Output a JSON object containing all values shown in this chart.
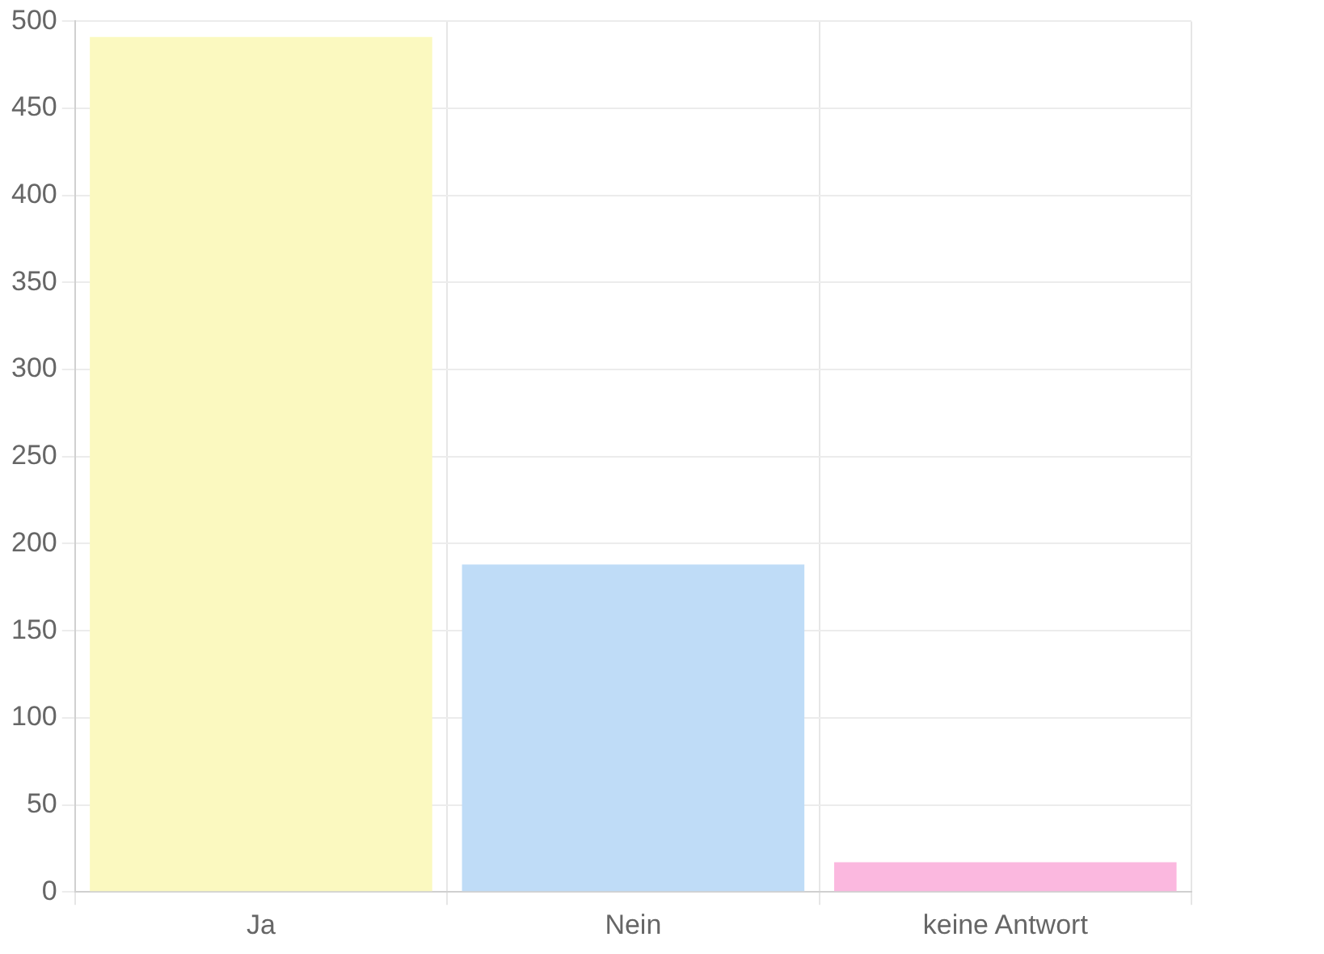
{
  "chart_data": {
    "type": "bar",
    "categories": [
      "Ja",
      "Nein",
      "keine Antwort"
    ],
    "values": [
      491,
      188,
      17
    ],
    "colors": [
      "#fbf9c0",
      "#bfdcf7",
      "#fbb8df"
    ],
    "ylim": [
      0,
      500
    ],
    "yticks": [
      0,
      50,
      100,
      150,
      200,
      250,
      300,
      350,
      400,
      450,
      500
    ],
    "grid": true
  }
}
